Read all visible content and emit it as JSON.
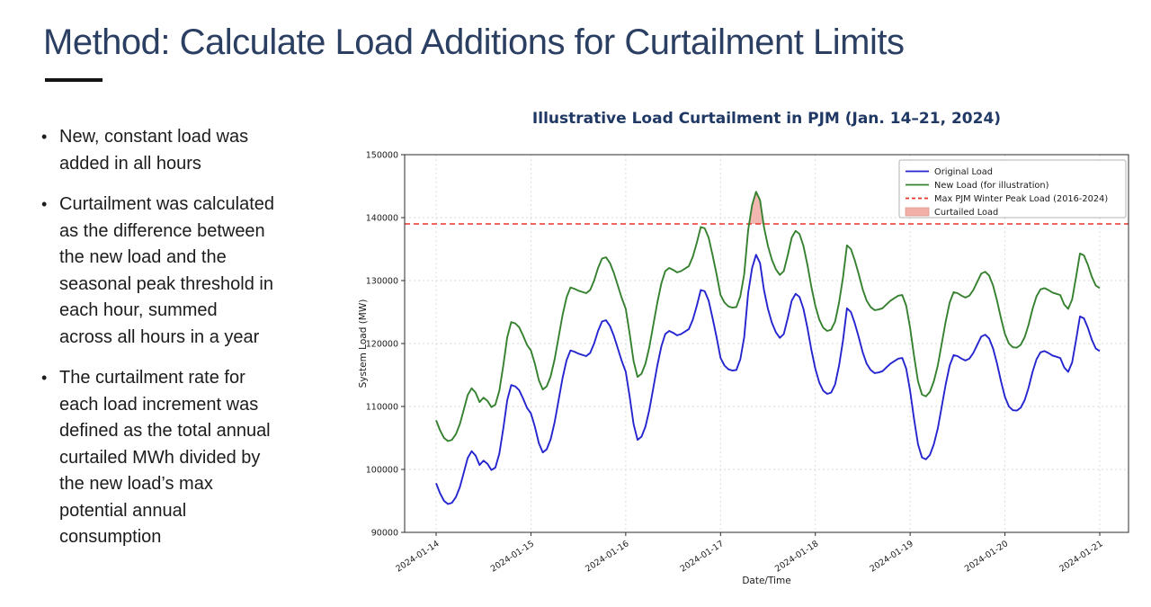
{
  "slide": {
    "title": "Method: Calculate Load Additions for Curtailment Limits",
    "bullets": [
      "New, constant load was added in all hours",
      "Curtailment was calculated as the difference between the new load and the seasonal peak threshold in each hour, summed across all hours in a year",
      "The curtailment rate for each load increment was defined as the total annual curtailed MWh divided by the new load’s max potential annual consumption"
    ]
  },
  "chart_data": {
    "type": "line",
    "title": "Illustrative Load Curtailment in PJM (Jan. 14–21, 2024)",
    "xlabel": "Date/Time",
    "ylabel": "System Load (MW)",
    "ylim": [
      90000,
      150000
    ],
    "y_ticks": [
      90000,
      100000,
      110000,
      120000,
      130000,
      140000,
      150000
    ],
    "x_tick_labels": [
      "2024-01-14",
      "2024-01-15",
      "2024-01-16",
      "2024-01-17",
      "2024-01-18",
      "2024-01-19",
      "2024-01-20",
      "2024-01-21"
    ],
    "x_unit": "hours from 2024-01-14 00:00, one point per hour",
    "grid": true,
    "legend_position": "upper right",
    "threshold": {
      "label": "Max PJM Winter Peak Load (2016-2024)",
      "value": 139000,
      "color": "#e8332b",
      "style": "dashed"
    },
    "curtailed": {
      "label": "Curtailed Load",
      "fill": "#f1afa8",
      "definition": "area where New Load exceeds threshold"
    },
    "series": [
      {
        "name": "Original Load",
        "color": "#2525cf",
        "values": [
          97800,
          96200,
          95000,
          94500,
          94700,
          95600,
          97200,
          99500,
          101800,
          102900,
          102200,
          100700,
          101400,
          100900,
          99900,
          100300,
          102500,
          106500,
          111000,
          113400,
          113200,
          112600,
          111300,
          109800,
          108900,
          106800,
          104200,
          102700,
          103200,
          104800,
          107500,
          111000,
          114500,
          117300,
          118900,
          118700,
          118400,
          118200,
          118000,
          118500,
          120000,
          122000,
          123500,
          123700,
          122800,
          121200,
          119200,
          117200,
          115500,
          111500,
          107200,
          104700,
          105200,
          106800,
          109500,
          113000,
          116500,
          119500,
          121500,
          122000,
          121700,
          121300,
          121500,
          121900,
          122300,
          123800,
          126000,
          128500,
          128300,
          126800,
          124000,
          121000,
          117700,
          116500,
          115900,
          115700,
          115800,
          117500,
          121000,
          128000,
          132000,
          134100,
          132800,
          128500,
          125500,
          123300,
          121800,
          120900,
          121500,
          124000,
          126800,
          127900,
          127400,
          125500,
          122500,
          119000,
          116000,
          113800,
          112500,
          112000,
          112200,
          113500,
          116500,
          120500,
          125600,
          125000,
          123200,
          121000,
          118600,
          116800,
          115800,
          115300,
          115400,
          115600,
          116200,
          116800,
          117200,
          117600,
          117700,
          116000,
          112500,
          108000,
          104000,
          101900,
          101600,
          102300,
          104000,
          106500,
          110000,
          113500,
          116500,
          118150,
          118000,
          117600,
          117300,
          117600,
          118500,
          119800,
          121100,
          121400,
          120800,
          119200,
          116800,
          114000,
          111500,
          110000,
          109400,
          109350,
          109800,
          111000,
          113000,
          115500,
          117500,
          118600,
          118800,
          118500,
          118100,
          117900,
          117700,
          116200,
          115500,
          117000,
          120500,
          124300,
          124000,
          122500,
          120600,
          119200,
          118800
        ]
      },
      {
        "name": "New Load (for illustration)",
        "color": "#35812f",
        "derived_from": "Original Load",
        "offset": 10000
      }
    ],
    "legend": [
      "Original Load",
      "New Load (for illustration)",
      "Max PJM Winter Peak Load (2016-2024)",
      "Curtailed Load"
    ]
  }
}
